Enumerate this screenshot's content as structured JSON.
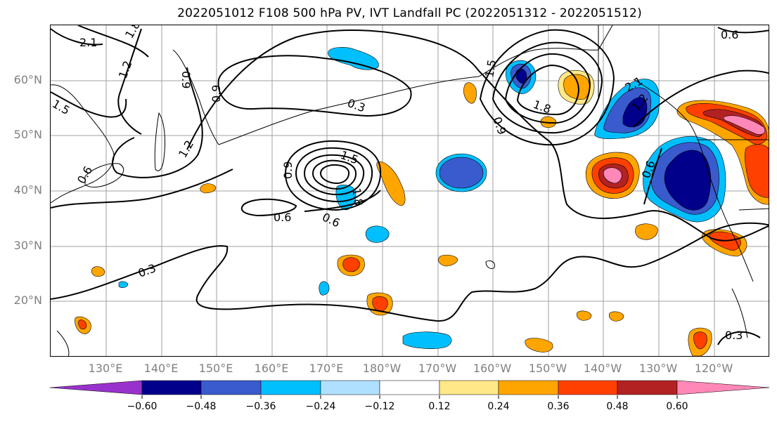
{
  "title": "2022051012 F108 500 hPa PV, IVT Landfall PC (2022051312 - 2022051512)",
  "lat_labels": [
    "60°N",
    "50°N",
    "40°N",
    "30°N",
    "20°N"
  ],
  "lon_labels": [
    "130°E",
    "140°E",
    "150°E",
    "160°E",
    "170°E",
    "180°W",
    "170°W",
    "160°W",
    "150°W",
    "140°W",
    "130°W",
    "120°W"
  ],
  "contour_labels": [
    "2.1",
    "1.8",
    "1.2",
    "0.9",
    "1.5",
    "0.9",
    "1.2",
    "0.6",
    "0.3",
    "1.5",
    "1.8",
    "0.9",
    "1.5",
    "1.8",
    "0.9",
    "0.6",
    "0.6",
    "0.6",
    "0.3",
    "0.3",
    "0.6",
    "1.2",
    "2.1"
  ],
  "colorbar": {
    "ticks": [
      "−0.60",
      "−0.48",
      "−0.36",
      "−0.24",
      "−0.12",
      "0.12",
      "0.24",
      "0.36",
      "0.48",
      "0.60"
    ],
    "colors": [
      "#9932cc",
      "#00008b",
      "#3a5bcd",
      "#00bfff",
      "#b0e0ff",
      "#ffffff",
      "#ffe888",
      "#ffa500",
      "#ff4000",
      "#b22222",
      "#ff88b8"
    ]
  },
  "shading_colors": {
    "neg_light": "#00bfff",
    "neg_mid": "#3a5bcd",
    "neg_dark": "#00008b",
    "pos_yellow": "#ffe888",
    "pos_orange": "#ffa500",
    "pos_red": "#ff4000",
    "pos_darkred": "#b22222",
    "pos_pink": "#ff88b8"
  }
}
